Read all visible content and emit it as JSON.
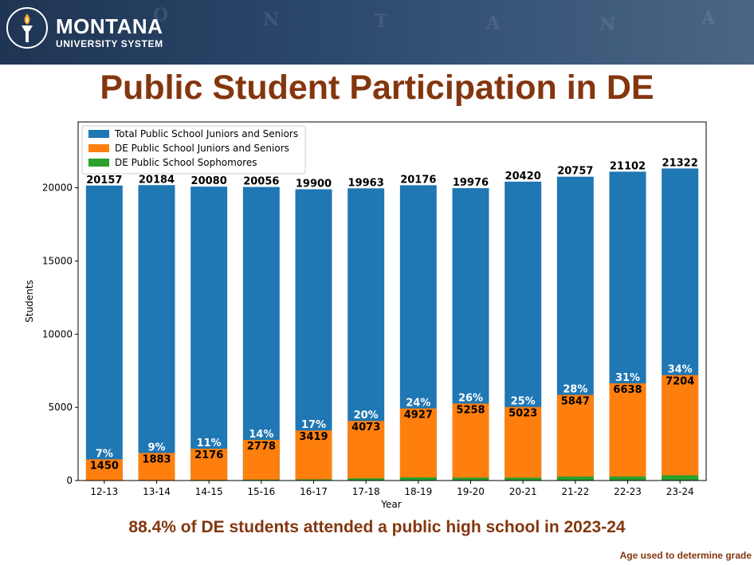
{
  "header": {
    "logo_name": "MONTANA",
    "logo_sub": "UNIVERSITY SYSTEM",
    "colors": {
      "banner": "#253d5e",
      "title": "#84360e"
    },
    "map_letters": [
      "O",
      "N",
      "T",
      "A",
      "N",
      "A"
    ]
  },
  "slide": {
    "title": "Public Student Participation in DE",
    "footnote": "88.4% of DE students attended a public high school in 2023-24",
    "corner_note": "Age used to determine grade"
  },
  "chart_data": {
    "type": "bar",
    "xlabel": "Year",
    "ylabel": "Students",
    "ylim": [
      0,
      24500
    ],
    "yticks": [
      0,
      5000,
      10000,
      15000,
      20000
    ],
    "legend_position": "top-left",
    "grid": false,
    "categories": [
      "12-13",
      "13-14",
      "14-15",
      "15-16",
      "16-17",
      "17-18",
      "18-19",
      "19-20",
      "20-21",
      "21-22",
      "22-23",
      "23-24"
    ],
    "series": [
      {
        "name": "Total Public School Juniors and Seniors",
        "color": "#1f77b4",
        "values": [
          20157,
          20184,
          20080,
          20056,
          19900,
          19963,
          20176,
          19976,
          20420,
          20757,
          21102,
          21322
        ]
      },
      {
        "name": "DE Public School Juniors and Seniors",
        "color": "#ff7f0e",
        "values": [
          1450,
          1883,
          2176,
          2778,
          3419,
          4073,
          4927,
          5258,
          5023,
          5847,
          6638,
          7204
        ]
      },
      {
        "name": "DE Public School Sophomores",
        "color": "#2ca02c",
        "values": [
          20,
          30,
          40,
          60,
          80,
          150,
          220,
          200,
          200,
          270,
          280,
          360
        ]
      }
    ],
    "percent_labels": [
      "7%",
      "9%",
      "11%",
      "14%",
      "17%",
      "20%",
      "24%",
      "26%",
      "25%",
      "28%",
      "31%",
      "34%"
    ]
  }
}
